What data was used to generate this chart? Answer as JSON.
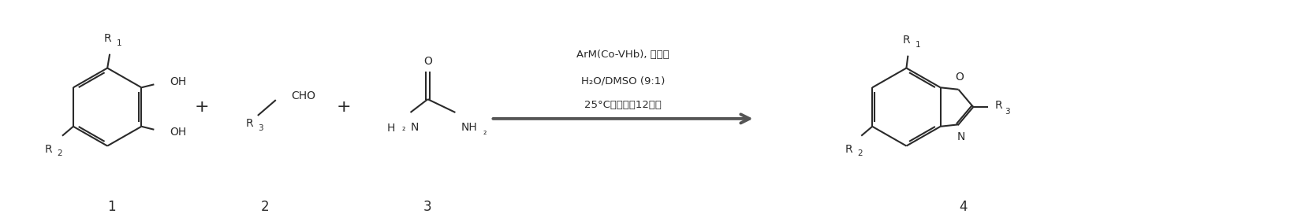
{
  "bg_color": "#ffffff",
  "fig_width": 16.41,
  "fig_height": 2.81,
  "dpi": 100,
  "arrow_text_line1": "ArM(Co-VHb), 尿素酶",
  "arrow_text_line2": "H₂O/DMSO (9:1)",
  "arrow_text_line3": "25°C，空气，12小时",
  "line_color": "#2a2a2a",
  "text_color": "#2a2a2a",
  "font_size_label": 12,
  "font_size_atom": 10,
  "font_size_cond": 9.5
}
